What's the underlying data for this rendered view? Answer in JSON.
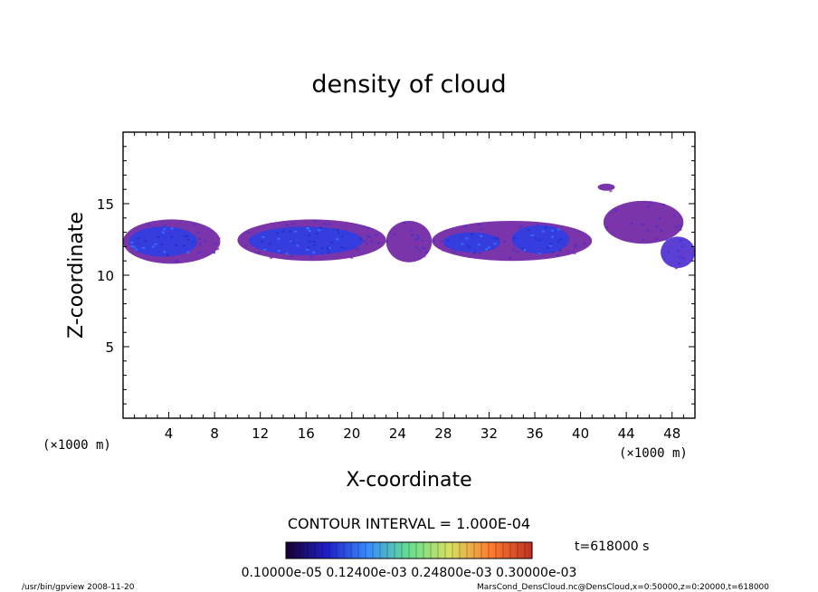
{
  "footer": {
    "left": "/usr/bin/gpview   2008-11-20",
    "right": "MarsCond_DensCloud.nc@DensCloud,x=0:50000,z=0:20000,t=618000"
  },
  "time_label": "t=618000 s",
  "contour_label": "CONTOUR INTERVAL = 1.000E-04",
  "colorbar": {
    "labels_text": "0.10000e-05 0.12400e-03 0.24800e-03 0.30000e-03",
    "color_stops": [
      "#1a0030",
      "#1e1ec8",
      "#3a8cff",
      "#64e090",
      "#d8e060",
      "#ff7a30",
      "#c03020"
    ]
  },
  "chart_data": {
    "type": "heatmap",
    "title": "density of cloud",
    "xlabel": "X-coordinate",
    "ylabel": "Z-coordinate",
    "x_unit": "(×1000 m)",
    "y_unit": "(×1000 m)",
    "xlim": [
      0,
      50
    ],
    "ylim": [
      0,
      20
    ],
    "x_ticks": [
      4,
      8,
      12,
      16,
      20,
      24,
      28,
      32,
      36,
      40,
      44,
      48
    ],
    "y_ticks": [
      5,
      10,
      15
    ],
    "x_tick_labels": [
      "4",
      "8",
      "12",
      "16",
      "20",
      "24",
      "28",
      "32",
      "36",
      "40",
      "44",
      "48"
    ],
    "y_tick_labels": [
      "5",
      "10",
      "15"
    ],
    "cloud_layer_z_range": [
      10.8,
      14.0
    ],
    "regions": [
      {
        "x": [
          0,
          8.5
        ],
        "z": [
          10.8,
          13.9
        ],
        "level": "low"
      },
      {
        "x": [
          0.5,
          6.5
        ],
        "z": [
          11.3,
          13.4
        ],
        "level": "high"
      },
      {
        "x": [
          10,
          23
        ],
        "z": [
          11.0,
          13.9
        ],
        "level": "low"
      },
      {
        "x": [
          11,
          21
        ],
        "z": [
          11.4,
          13.4
        ],
        "level": "high"
      },
      {
        "x": [
          23,
          27
        ],
        "z": [
          10.9,
          13.8
        ],
        "level": "low"
      },
      {
        "x": [
          27,
          41
        ],
        "z": [
          11.0,
          13.8
        ],
        "level": "low"
      },
      {
        "x": [
          28,
          33
        ],
        "z": [
          11.6,
          13.0
        ],
        "level": "high"
      },
      {
        "x": [
          34,
          39
        ],
        "z": [
          11.5,
          13.5
        ],
        "level": "high"
      },
      {
        "x": [
          41.5,
          43
        ],
        "z": [
          15.9,
          16.4
        ],
        "level": "low"
      },
      {
        "x": [
          42,
          49
        ],
        "z": [
          12.2,
          15.2
        ],
        "level": "low"
      },
      {
        "x": [
          47,
          50
        ],
        "z": [
          10.5,
          12.7
        ],
        "level": "mid"
      }
    ]
  }
}
